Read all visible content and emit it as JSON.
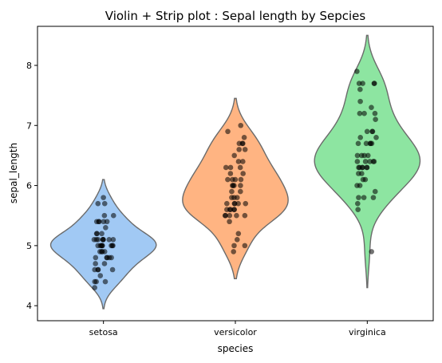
{
  "chart_data": {
    "type": "violin",
    "title": "Violin + Strip plot : Sepal length by Sepcies",
    "xlabel": "species",
    "ylabel": "sepal_length",
    "ylim": [
      3.75,
      8.65
    ],
    "yticks": [
      4,
      5,
      6,
      7,
      8
    ],
    "grid": false,
    "categories": [
      "setosa",
      "versicolor",
      "virginica"
    ],
    "violin_colors": [
      "#a1c9f4",
      "#ffb482",
      "#8de5a1"
    ],
    "point_color": "#000000",
    "violin_range": [
      [
        3.95,
        6.1
      ],
      [
        4.45,
        7.45
      ],
      [
        4.3,
        8.5
      ]
    ],
    "violin_peak": [
      5.0,
      5.8,
      6.4
    ],
    "points": [
      [
        5.1,
        4.9,
        4.7,
        4.6,
        5.0,
        5.4,
        4.6,
        5.0,
        4.4,
        4.9,
        5.4,
        4.8,
        4.8,
        4.3,
        5.8,
        5.7,
        5.4,
        5.1,
        5.7,
        5.1,
        5.4,
        5.1,
        4.6,
        5.1,
        4.8,
        5.0,
        5.0,
        5.2,
        5.2,
        4.7,
        4.8,
        5.4,
        5.2,
        5.5,
        4.9,
        5.0,
        5.5,
        4.9,
        4.4,
        5.1,
        5.0,
        4.5,
        4.4,
        5.0,
        5.1,
        4.8,
        5.1,
        4.6,
        5.3,
        5.0
      ],
      [
        7.0,
        6.4,
        6.9,
        5.5,
        6.5,
        5.7,
        6.3,
        4.9,
        6.6,
        5.2,
        5.0,
        5.9,
        6.0,
        6.1,
        5.6,
        6.7,
        5.6,
        5.8,
        6.2,
        5.6,
        5.9,
        6.1,
        6.3,
        6.1,
        6.4,
        6.6,
        6.8,
        6.7,
        6.0,
        5.7,
        5.5,
        5.5,
        5.8,
        6.0,
        5.4,
        6.0,
        6.7,
        6.3,
        5.6,
        5.5,
        5.5,
        6.1,
        5.8,
        5.0,
        5.6,
        5.7,
        5.7,
        6.2,
        5.1,
        5.7
      ],
      [
        6.3,
        5.8,
        7.1,
        6.3,
        6.5,
        7.6,
        4.9,
        7.3,
        6.7,
        7.2,
        6.5,
        6.4,
        6.8,
        5.7,
        5.8,
        6.4,
        6.5,
        7.7,
        7.7,
        6.0,
        6.9,
        5.6,
        7.7,
        6.3,
        6.7,
        7.2,
        6.2,
        6.1,
        6.4,
        7.2,
        7.4,
        7.9,
        6.4,
        6.3,
        6.1,
        7.7,
        6.3,
        6.4,
        6.0,
        6.9,
        6.7,
        6.9,
        5.8,
        6.8,
        6.7,
        6.7,
        6.3,
        6.5,
        6.2,
        5.9
      ]
    ]
  }
}
